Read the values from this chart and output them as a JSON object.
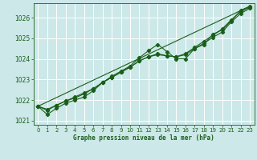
{
  "xlabel": "Graphe pression niveau de la mer (hPa)",
  "bg_color": "#cce8e8",
  "grid_color": "#ffffff",
  "line_color": "#1a5e1a",
  "ylim": [
    1020.8,
    1026.7
  ],
  "xlim": [
    -0.5,
    23.5
  ],
  "yticks": [
    1021,
    1022,
    1023,
    1024,
    1025,
    1026
  ],
  "xticks": [
    0,
    1,
    2,
    3,
    4,
    5,
    6,
    7,
    8,
    9,
    10,
    11,
    12,
    13,
    14,
    15,
    16,
    17,
    18,
    19,
    20,
    21,
    22,
    23
  ],
  "series1": [
    1021.7,
    1021.3,
    1021.6,
    1021.85,
    1022.0,
    1022.15,
    1022.45,
    1022.85,
    1023.15,
    1023.4,
    1023.65,
    1024.05,
    1024.4,
    1024.7,
    1024.35,
    1024.0,
    1024.0,
    1024.5,
    1024.7,
    1025.2,
    1025.4,
    1025.85,
    1026.35,
    1026.55
  ],
  "series2": [
    1021.7,
    1021.5,
    1021.75,
    1021.95,
    1022.1,
    1022.3,
    1022.55,
    1022.85,
    1023.1,
    1023.35,
    1023.6,
    1023.9,
    1024.1,
    1024.2,
    1024.15,
    1024.1,
    1024.2,
    1024.5,
    1024.75,
    1025.05,
    1025.3,
    1025.8,
    1026.2,
    1026.45
  ],
  "series3": [
    1021.7,
    1021.55,
    1021.75,
    1021.95,
    1022.15,
    1022.35,
    1022.55,
    1022.85,
    1023.1,
    1023.35,
    1023.6,
    1023.9,
    1024.1,
    1024.25,
    1024.15,
    1024.1,
    1024.25,
    1024.55,
    1024.85,
    1025.15,
    1025.45,
    1025.9,
    1026.3,
    1026.5
  ],
  "trend_x": [
    0,
    23
  ],
  "trend_y": [
    1021.7,
    1026.55
  ],
  "tick_fontsize": 5.0,
  "xlabel_fontsize": 5.5,
  "marker_size": 2.2,
  "linewidth": 0.8
}
